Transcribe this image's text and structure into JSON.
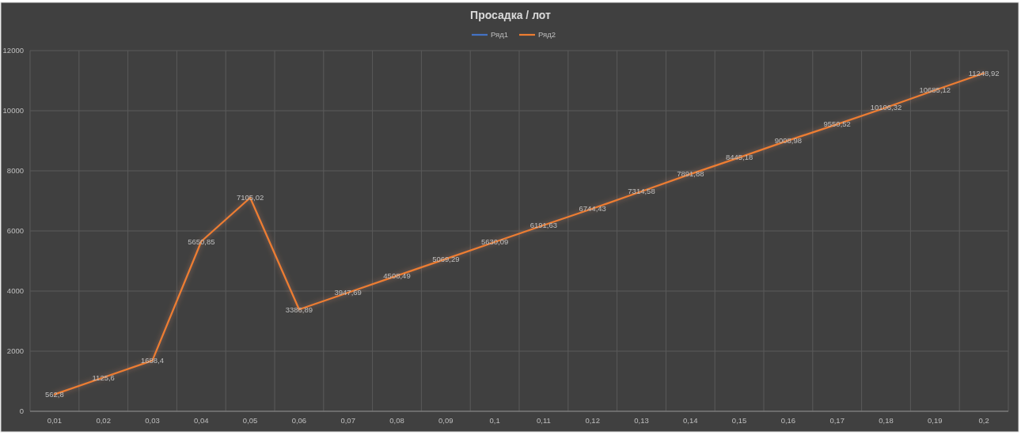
{
  "chart_data": {
    "type": "line",
    "title": "Просадка / лот",
    "categories": [
      "0,01",
      "0,02",
      "0,03",
      "0,04",
      "0,05",
      "0,06",
      "0,07",
      "0,08",
      "0,09",
      "0,1",
      "0,11",
      "0,12",
      "0,13",
      "0,14",
      "0,15",
      "0,16",
      "0,17",
      "0,18",
      "0,19",
      "0,2"
    ],
    "series": [
      {
        "name": "Ряд1",
        "color": "#4472c4",
        "values": [
          null,
          null,
          null,
          null,
          null,
          null,
          null,
          null,
          null,
          null,
          null,
          null,
          null,
          null,
          null,
          null,
          null,
          null,
          null,
          null
        ]
      },
      {
        "name": "Ряд2",
        "color": "#ed7d31",
        "values": [
          562.8,
          1125.6,
          1688.4,
          5650.85,
          7105.02,
          3386.89,
          3947.69,
          4508.49,
          5069.29,
          5630.09,
          6191.63,
          6744.43,
          7314.58,
          7891.88,
          8445.18,
          9008.98,
          9550.52,
          10106.32,
          10685.12,
          11248.92
        ],
        "value_labels": [
          "562,8",
          "1125,6",
          "1688,4",
          "5650,85",
          "7105,02",
          "3386,89",
          "3947,69",
          "4508,49",
          "5069,29",
          "5630,09",
          "6191,63",
          "6744,43",
          "7314,58",
          "7891,88",
          "8445,18",
          "9008,98",
          "9550,52",
          "10106,32",
          "10685,12",
          "11248,92"
        ]
      }
    ],
    "ylim": [
      0,
      12000
    ],
    "yticks": [
      0,
      2000,
      4000,
      6000,
      8000,
      10000,
      12000
    ],
    "grid": true,
    "legend": "top"
  }
}
